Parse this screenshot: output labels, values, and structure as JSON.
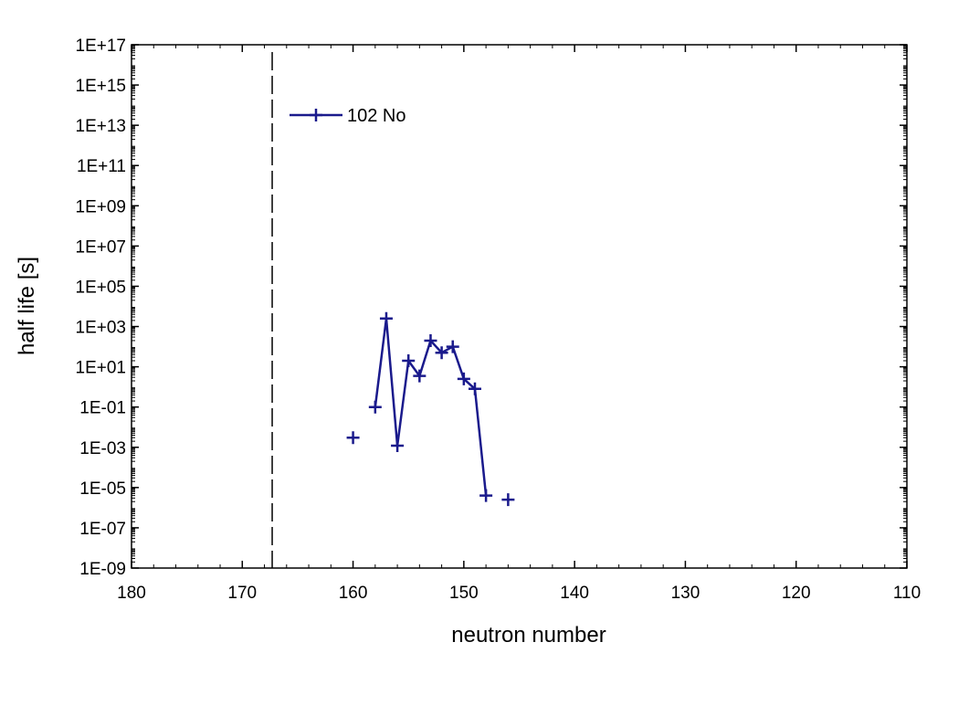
{
  "chart_data": {
    "type": "line",
    "title": "",
    "xlabel": "neutron number",
    "ylabel": "half life [s]",
    "x_reversed": true,
    "xlim": [
      180,
      110
    ],
    "x_ticks": [
      "180",
      "170",
      "160",
      "150",
      "140",
      "130",
      "120",
      "110"
    ],
    "y_scale": "log",
    "ylim": [
      1e-09,
      1e+17
    ],
    "y_ticks": [
      "1E-09",
      "1E-07",
      "1E-05",
      "1E-03",
      "1E-01",
      "1E+01",
      "1E+03",
      "1E+05",
      "1E+07",
      "1E+09",
      "1E+11",
      "1E+13",
      "1E+15",
      "1E+17"
    ],
    "reference_line_x": 167.3,
    "legend": {
      "position": "top-left"
    },
    "series": [
      {
        "name": "102 No",
        "color": "#1a1a8c",
        "marker": "plus",
        "points": [
          {
            "x": 160,
            "y": 0.003,
            "connected": false
          },
          {
            "x": 158,
            "y": 0.1,
            "connected": true
          },
          {
            "x": 157,
            "y": 2500,
            "connected": true
          },
          {
            "x": 156,
            "y": 0.0012,
            "connected": true
          },
          {
            "x": 155,
            "y": 20,
            "connected": true
          },
          {
            "x": 154,
            "y": 3.5,
            "connected": true
          },
          {
            "x": 153,
            "y": 200,
            "connected": true
          },
          {
            "x": 152,
            "y": 50,
            "connected": true
          },
          {
            "x": 151,
            "y": 100,
            "connected": true
          },
          {
            "x": 150,
            "y": 2.5,
            "connected": true
          },
          {
            "x": 149,
            "y": 0.8,
            "connected": true
          },
          {
            "x": 148,
            "y": 4e-06,
            "connected": true
          },
          {
            "x": 146,
            "y": 2.5e-06,
            "connected": false
          }
        ]
      }
    ]
  }
}
